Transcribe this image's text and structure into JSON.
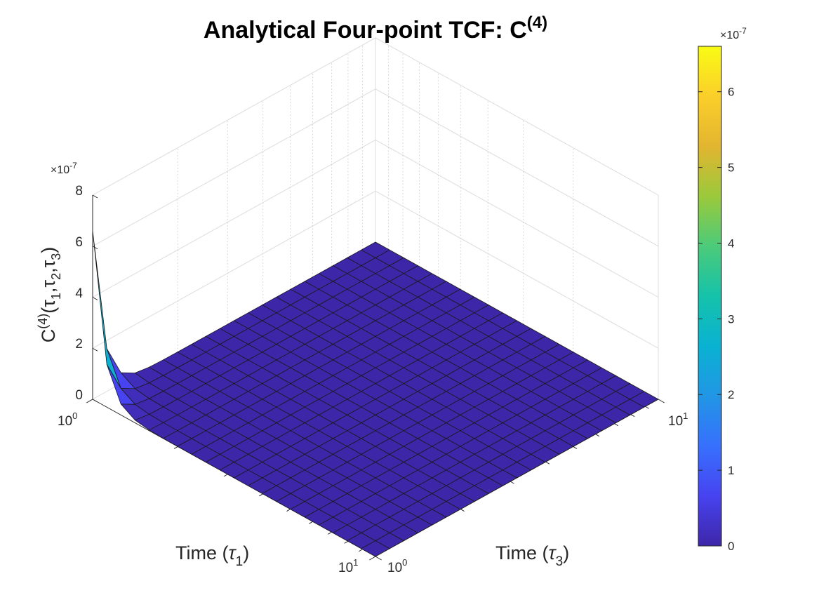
{
  "chart_data": {
    "type": "surface",
    "title": "Analytical Four-point TCF: C",
    "title_superscript": "(4)",
    "xlabel": "Time (",
    "xlabel_symbol": "τ",
    "xlabel_sub": "1",
    "xlabel_close": ")",
    "ylabel": "Time (",
    "ylabel_symbol": "τ",
    "ylabel_sub": "3",
    "ylabel_close": ")",
    "zlabel_base": "C",
    "zlabel_sup": "(4)",
    "zlabel_args": "(τ1,τ2,τ3)",
    "x_scale": "log",
    "y_scale": "log",
    "x_range": [
      1,
      10
    ],
    "y_range": [
      1,
      10
    ],
    "z_range": [
      0,
      8e-07
    ],
    "z_multiplier": "×10",
    "z_multiplier_exp": "-7",
    "x_tick_labels": [
      {
        "base": "10",
        "exp": "0"
      },
      {
        "base": "10",
        "exp": "1"
      }
    ],
    "y_tick_labels": [
      {
        "base": "10",
        "exp": "0"
      },
      {
        "base": "10",
        "exp": "1"
      }
    ],
    "z_ticks": [
      0,
      2,
      4,
      6,
      8
    ],
    "grid_points": 21,
    "peak_value": 6.6e-07,
    "decay_rate": 1.37,
    "colormap": "parula",
    "grid": true,
    "colorbar": {
      "range": [
        0,
        6.6e-07
      ],
      "ticks": [
        0,
        1,
        2,
        3,
        4,
        5,
        6
      ],
      "multiplier": "×10",
      "multiplier_exp": "-7"
    }
  }
}
